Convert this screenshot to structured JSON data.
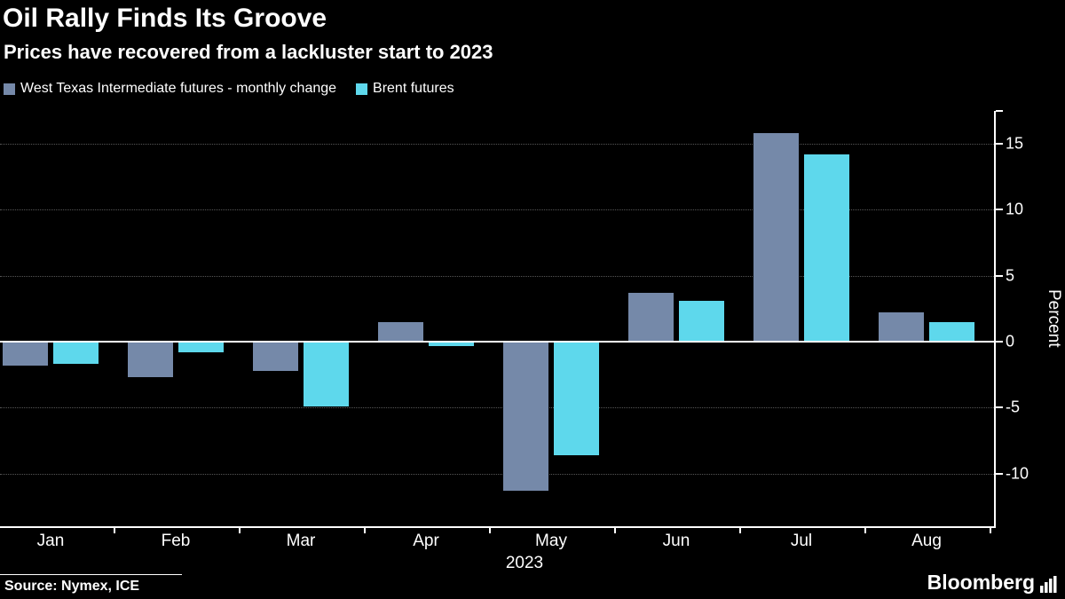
{
  "header": {
    "title": "Oil Rally Finds Its Groove",
    "subtitle": "Prices have recovered from a lackluster start to 2023"
  },
  "legend": [
    {
      "label": "West Texas Intermediate futures - monthly change",
      "color": "#7589a9"
    },
    {
      "label": "Brent futures",
      "color": "#5ed8ec"
    }
  ],
  "chart_data": {
    "type": "bar",
    "categories": [
      "Jan",
      "Feb",
      "Mar",
      "Apr",
      "May",
      "Jun",
      "Jul",
      "Aug"
    ],
    "series": [
      {
        "name": "West Texas Intermediate futures - monthly change",
        "color": "#7589a9",
        "values": [
          -1.8,
          -2.7,
          -2.2,
          1.5,
          -11.3,
          3.7,
          15.8,
          2.2
        ]
      },
      {
        "name": "Brent futures",
        "color": "#5ed8ec",
        "values": [
          -1.7,
          -0.8,
          -4.9,
          -0.3,
          -8.6,
          3.1,
          14.2,
          1.5
        ]
      }
    ],
    "x_axis_note": "2023",
    "ylabel": "Percent",
    "yticks": [
      15,
      10,
      5,
      0,
      -5,
      -10
    ],
    "ylim": [
      -14,
      17.5
    ],
    "grid": "dotted-horizontal",
    "legend_position": "top-left"
  },
  "footer": {
    "source": "Source: Nymex, ICE",
    "brand": "Bloomberg"
  }
}
